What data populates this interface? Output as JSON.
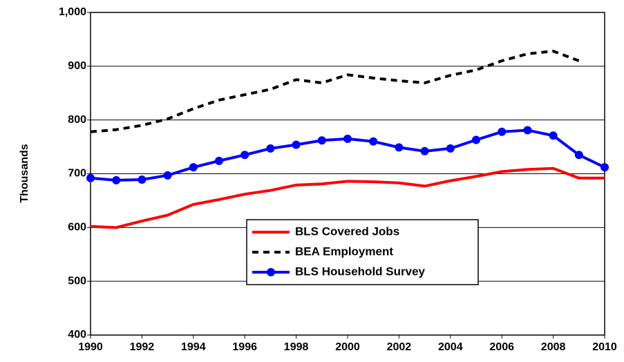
{
  "chart_data": {
    "type": "line",
    "y_label": "Thousands",
    "x": [
      1990,
      1991,
      1992,
      1993,
      1994,
      1995,
      1996,
      1997,
      1998,
      1999,
      2000,
      2001,
      2002,
      2003,
      2004,
      2005,
      2006,
      2007,
      2008,
      2009,
      2010
    ],
    "series": [
      {
        "name": "BLS Covered Jobs",
        "color": "#ff0000",
        "style": "solid",
        "markers": false,
        "values": [
          602,
          600,
          612,
          623,
          643,
          652,
          662,
          669,
          679,
          681,
          686,
          685,
          683,
          677,
          687,
          695,
          704,
          708,
          710,
          692,
          692
        ]
      },
      {
        "name": "BEA Employment",
        "color": "#000000",
        "style": "dashed",
        "markers": false,
        "values": [
          778,
          782,
          790,
          802,
          821,
          837,
          847,
          857,
          875,
          869,
          884,
          878,
          873,
          869,
          883,
          893,
          910,
          923,
          928,
          910,
          null
        ]
      },
      {
        "name": "BLS Household Survey",
        "color": "#0000ff",
        "style": "solid",
        "markers": true,
        "values": [
          692,
          688,
          689,
          697,
          712,
          724,
          735,
          747,
          754,
          762,
          765,
          760,
          749,
          742,
          747,
          763,
          778,
          781,
          771,
          735,
          712
        ]
      }
    ],
    "xlim": [
      1990,
      2010
    ],
    "xticks": [
      1990,
      1992,
      1994,
      1996,
      1998,
      2000,
      2002,
      2004,
      2006,
      2008,
      2010
    ],
    "ylim": [
      400,
      1000
    ],
    "yticks": [
      400,
      500,
      600,
      700,
      800,
      900,
      {
        "value": 1000,
        "label": "1,000"
      }
    ],
    "grid": true,
    "legend": "lower center"
  }
}
